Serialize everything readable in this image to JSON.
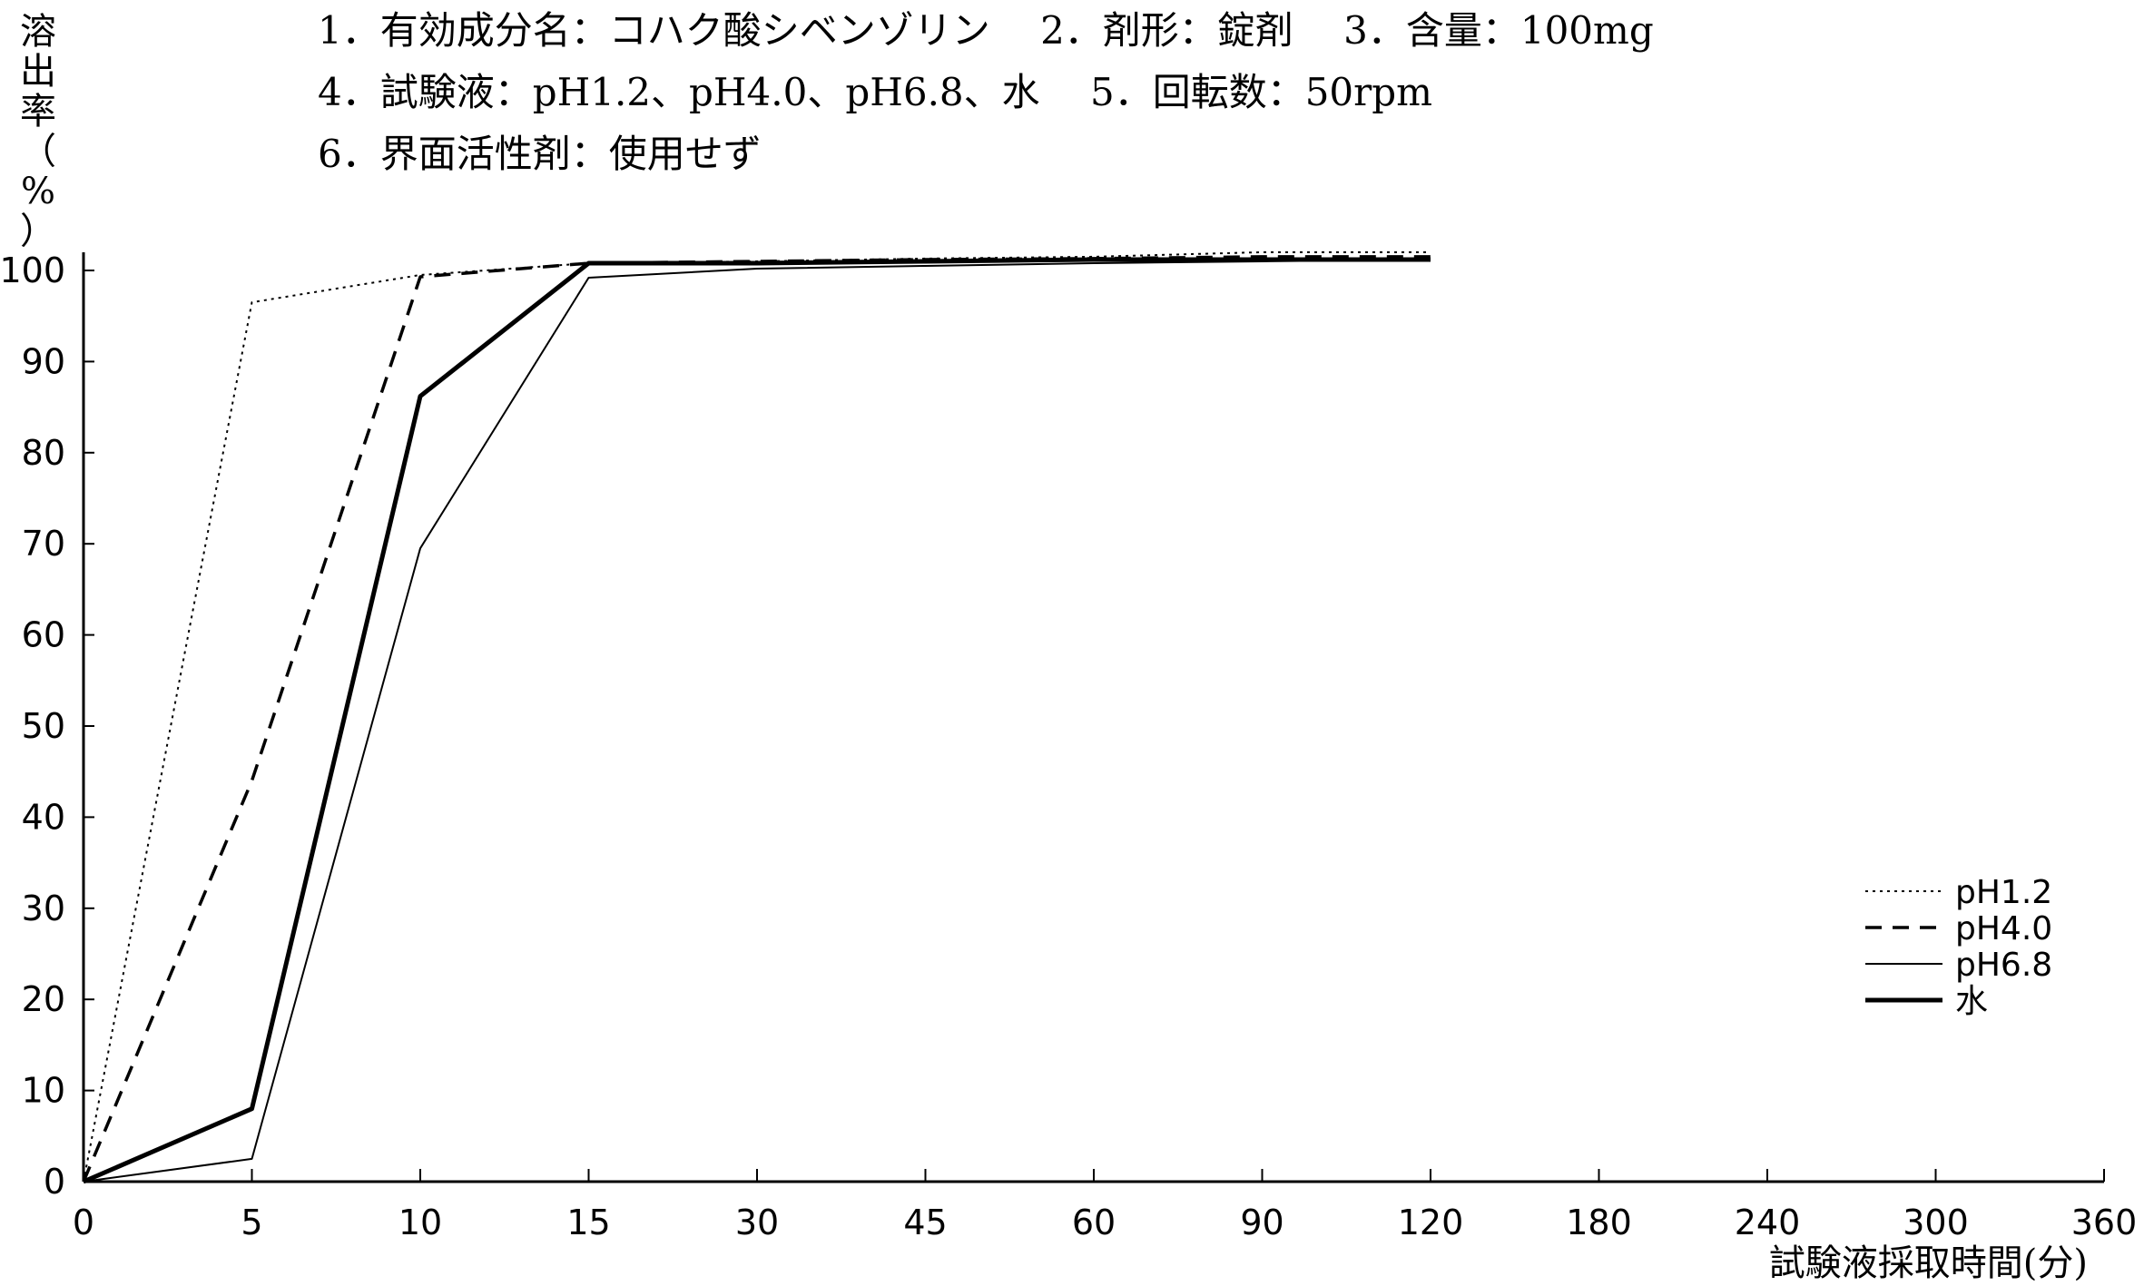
{
  "header": {
    "lines": [
      "1．有効成分名：コハク酸シベンゾリン　 2．剤形：錠剤　 3．含量：100mg",
      "4．試験液：pH1.2、pH4.0、pH6.8、水　 5．回転数：50rpm",
      "6．界面活性剤：使用せず"
    ]
  },
  "chart_data": {
    "type": "line",
    "ylabel_chars": [
      "溶",
      "出",
      "率",
      "（",
      "%",
      "）"
    ],
    "xlabel": "試験液採取時間(分)",
    "x_ticks": [
      "0",
      "5",
      "10",
      "15",
      "30",
      "45",
      "60",
      "90",
      "120",
      "180",
      "240",
      "300",
      "360"
    ],
    "y_ticks": [
      0,
      10,
      20,
      30,
      40,
      50,
      60,
      70,
      80,
      90,
      100
    ],
    "ylim": [
      0,
      100
    ],
    "x": [
      "0",
      "5",
      "10",
      "15",
      "30",
      "45",
      "60",
      "90",
      "120"
    ],
    "series": [
      {
        "name": "pH1.2",
        "style": "dotted",
        "values": [
          0,
          96.5,
          99.5,
          100.8,
          101,
          101.3,
          101.5,
          102,
          102
        ]
      },
      {
        "name": "pH4.0",
        "style": "dashed",
        "values": [
          0,
          44,
          99.3,
          100.8,
          101,
          101.2,
          101.3,
          101.5,
          101.5
        ]
      },
      {
        "name": "pH6.8",
        "style": "thin",
        "values": [
          0,
          2.5,
          69.5,
          99.2,
          100.2,
          100.5,
          100.8,
          101,
          101.2
        ]
      },
      {
        "name": "水",
        "style": "thick",
        "values": [
          0,
          8,
          86.2,
          100.8,
          100.8,
          101,
          101.2,
          101.2,
          101.2
        ]
      }
    ],
    "legend_position": "right",
    "grid": false
  }
}
